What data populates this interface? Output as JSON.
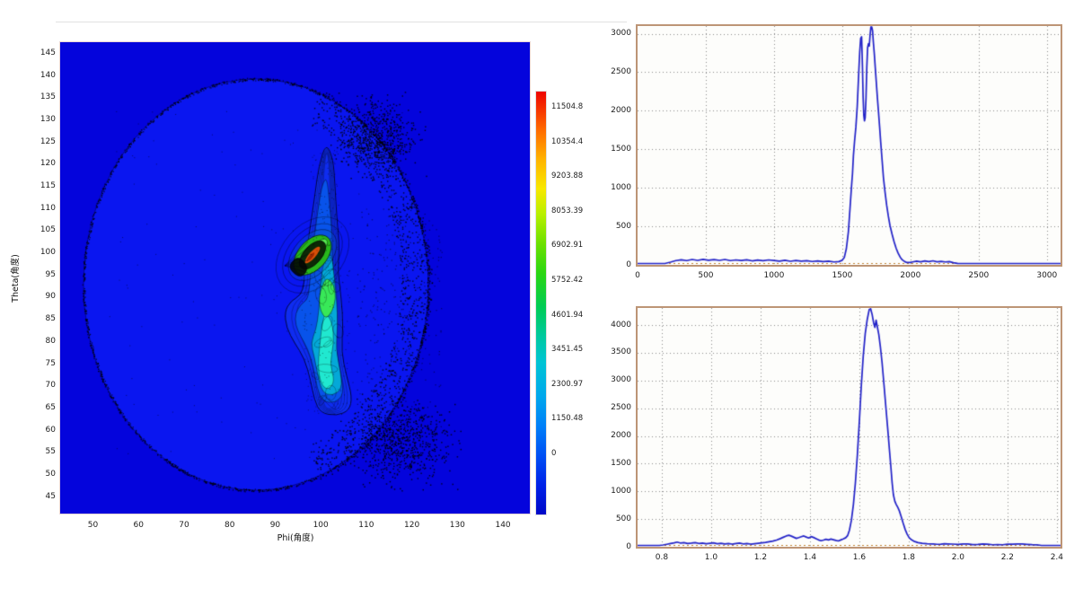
{
  "app": {
    "background": "#ffffff"
  },
  "chart_data": [
    {
      "id": "theta_phi_map",
      "type": "heatmap",
      "title": "",
      "xlabel": "Phi(角度)",
      "ylabel": "Theta(角度)",
      "x_tick_labels": [
        "50",
        "60",
        "70",
        "80",
        "90",
        "100",
        "110",
        "120",
        "130",
        "140"
      ],
      "x_tick_values": [
        50,
        60,
        70,
        80,
        90,
        100,
        110,
        120,
        130,
        140
      ],
      "y_tick_labels": [
        "145",
        "140",
        "135",
        "130",
        "125",
        "120",
        "115",
        "110",
        "105",
        "100",
        "95",
        "90",
        "85",
        "80",
        "75",
        "70",
        "65",
        "60",
        "55",
        "50",
        "45"
      ],
      "y_tick_values": [
        145,
        140,
        135,
        130,
        125,
        120,
        115,
        110,
        105,
        100,
        95,
        90,
        85,
        80,
        75,
        70,
        65,
        60,
        55,
        50,
        45
      ],
      "x_range": [
        42.8,
        145.9
      ],
      "y_range": [
        41.2,
        147.5
      ],
      "value_range": [
        0,
        11504.8
      ],
      "grid": false,
      "colorbar": {
        "orientation": "vertical",
        "tick_labels": [
          "11504.8",
          "10354.4",
          "9203.88",
          "8053.39",
          "6902.91",
          "5752.42",
          "4601.94",
          "3451.45",
          "2300.97",
          "1150.48",
          "0"
        ],
        "tick_values": [
          11504.8,
          10354.4,
          9203.88,
          8053.39,
          6902.91,
          5752.42,
          4601.94,
          3451.45,
          2300.97,
          1150.48,
          0
        ],
        "gradient_top_to_bottom": [
          "#ee0400",
          "#ff8000",
          "#ffd000",
          "#ffff00",
          "#80e000",
          "#20c820",
          "#00cc55",
          "#00c9a0",
          "#00c4d4",
          "#00a0f0",
          "#0050f4",
          "#0008c8"
        ]
      },
      "features": {
        "background_value_color": "#0404dc",
        "disk": {
          "center_phi": 85.8,
          "center_theta": 92.9,
          "radius_phi": 37.9,
          "radius_theta": 46.4,
          "fill": "#0a16f0"
        },
        "hot_spot": {
          "phi": 98.2,
          "theta": 99.5,
          "value": 11504.8,
          "core_color": "#d85008"
        },
        "plume": {
          "phi_span": [
            94,
            107
          ],
          "theta_span": [
            59,
            124
          ]
        },
        "speckle_color": "#000000"
      }
    },
    {
      "id": "spectrum_top",
      "type": "line",
      "title": "",
      "xlabel": "",
      "ylabel": "",
      "x_tick_labels": [
        "0",
        "500",
        "1000",
        "1500",
        "2000",
        "2500",
        "3000"
      ],
      "x_tick_values": [
        0,
        500,
        1000,
        1500,
        2000,
        2500,
        3000
      ],
      "y_tick_labels": [
        "0",
        "500",
        "1000",
        "1500",
        "2000",
        "2500",
        "3000"
      ],
      "y_tick_values": [
        0,
        500,
        1000,
        1500,
        2000,
        2500,
        3000
      ],
      "x_range": [
        0,
        3100
      ],
      "y_range": [
        0,
        3100
      ],
      "grid": "dotted",
      "line_color": "#2323c8",
      "border_color": "#bd9576",
      "zero_line_color": "#c08030",
      "noise_amp": 5,
      "points": [
        [
          0,
          6
        ],
        [
          80,
          6
        ],
        [
          150,
          8
        ],
        [
          200,
          15
        ],
        [
          240,
          35
        ],
        [
          280,
          55
        ],
        [
          320,
          65
        ],
        [
          360,
          55
        ],
        [
          400,
          70
        ],
        [
          440,
          58
        ],
        [
          480,
          72
        ],
        [
          520,
          60
        ],
        [
          560,
          68
        ],
        [
          600,
          58
        ],
        [
          640,
          70
        ],
        [
          680,
          55
        ],
        [
          720,
          64
        ],
        [
          760,
          56
        ],
        [
          800,
          66
        ],
        [
          840,
          52
        ],
        [
          880,
          62
        ],
        [
          920,
          54
        ],
        [
          960,
          64
        ],
        [
          1000,
          56
        ],
        [
          1040,
          48
        ],
        [
          1080,
          60
        ],
        [
          1120,
          47
        ],
        [
          1160,
          57
        ],
        [
          1200,
          49
        ],
        [
          1240,
          54
        ],
        [
          1280,
          44
        ],
        [
          1320,
          52
        ],
        [
          1360,
          42
        ],
        [
          1400,
          47
        ],
        [
          1440,
          38
        ],
        [
          1475,
          42
        ],
        [
          1500,
          60
        ],
        [
          1515,
          95
        ],
        [
          1530,
          210
        ],
        [
          1545,
          430
        ],
        [
          1558,
          760
        ],
        [
          1568,
          1020
        ],
        [
          1575,
          1180
        ],
        [
          1582,
          1420
        ],
        [
          1590,
          1600
        ],
        [
          1600,
          1790
        ],
        [
          1610,
          2060
        ],
        [
          1620,
          2460
        ],
        [
          1628,
          2760
        ],
        [
          1635,
          2940
        ],
        [
          1642,
          2960
        ],
        [
          1648,
          2580
        ],
        [
          1653,
          2180
        ],
        [
          1658,
          1940
        ],
        [
          1663,
          1870
        ],
        [
          1668,
          1910
        ],
        [
          1674,
          2160
        ],
        [
          1680,
          2560
        ],
        [
          1686,
          2820
        ],
        [
          1692,
          2870
        ],
        [
          1698,
          2840
        ],
        [
          1704,
          2980
        ],
        [
          1710,
          3100
        ],
        [
          1716,
          3100
        ],
        [
          1722,
          3040
        ],
        [
          1728,
          2890
        ],
        [
          1735,
          2740
        ],
        [
          1742,
          2560
        ],
        [
          1750,
          2360
        ],
        [
          1758,
          2160
        ],
        [
          1766,
          1980
        ],
        [
          1774,
          1790
        ],
        [
          1782,
          1590
        ],
        [
          1792,
          1360
        ],
        [
          1802,
          1130
        ],
        [
          1814,
          940
        ],
        [
          1826,
          770
        ],
        [
          1838,
          630
        ],
        [
          1850,
          510
        ],
        [
          1865,
          400
        ],
        [
          1880,
          300
        ],
        [
          1895,
          215
        ],
        [
          1910,
          150
        ],
        [
          1925,
          100
        ],
        [
          1940,
          65
        ],
        [
          1958,
          42
        ],
        [
          1975,
          30
        ],
        [
          1995,
          30
        ],
        [
          2015,
          38
        ],
        [
          2045,
          48
        ],
        [
          2075,
          40
        ],
        [
          2105,
          50
        ],
        [
          2135,
          42
        ],
        [
          2165,
          52
        ],
        [
          2195,
          40
        ],
        [
          2225,
          46
        ],
        [
          2255,
          38
        ],
        [
          2285,
          42
        ],
        [
          2315,
          28
        ],
        [
          2345,
          18
        ],
        [
          2375,
          12
        ],
        [
          2410,
          9
        ],
        [
          2460,
          8
        ],
        [
          2520,
          7
        ],
        [
          2600,
          6
        ],
        [
          2700,
          6
        ],
        [
          2800,
          5
        ],
        [
          2900,
          5
        ],
        [
          3000,
          5
        ],
        [
          3100,
          5
        ]
      ]
    },
    {
      "id": "spectrum_bottom",
      "type": "line",
      "title": "",
      "xlabel": "",
      "ylabel": "",
      "x_tick_labels": [
        "0.8",
        "1.0",
        "1.2",
        "1.4",
        "1.6",
        "1.8",
        "2.0",
        "2.2",
        "2.4"
      ],
      "x_tick_values": [
        0.8,
        1.0,
        1.2,
        1.4,
        1.6,
        1.8,
        2.0,
        2.2,
        2.4
      ],
      "y_tick_labels": [
        "0",
        "500",
        "1000",
        "1500",
        "2000",
        "2500",
        "3000",
        "3500",
        "4000"
      ],
      "y_tick_values": [
        0,
        500,
        1000,
        1500,
        2000,
        2500,
        3000,
        3500,
        4000
      ],
      "x_range": [
        0.702,
        2.415
      ],
      "y_range": [
        0,
        4310
      ],
      "grid": "dotted",
      "line_color": "#2323c8",
      "border_color": "#bd9576",
      "zero_line_color": "#c08030",
      "noise_amp": 8,
      "points": [
        [
          0.702,
          6
        ],
        [
          0.73,
          6
        ],
        [
          0.755,
          8
        ],
        [
          0.775,
          12
        ],
        [
          0.79,
          20
        ],
        [
          0.805,
          32
        ],
        [
          0.82,
          45
        ],
        [
          0.835,
          58
        ],
        [
          0.85,
          72
        ],
        [
          0.862,
          85
        ],
        [
          0.875,
          68
        ],
        [
          0.89,
          75
        ],
        [
          0.905,
          58
        ],
        [
          0.92,
          66
        ],
        [
          0.935,
          76
        ],
        [
          0.95,
          60
        ],
        [
          0.965,
          68
        ],
        [
          0.98,
          54
        ],
        [
          0.995,
          62
        ],
        [
          1.01,
          70
        ],
        [
          1.025,
          56
        ],
        [
          1.04,
          64
        ],
        [
          1.055,
          50
        ],
        [
          1.07,
          60
        ],
        [
          1.085,
          48
        ],
        [
          1.1,
          58
        ],
        [
          1.115,
          66
        ],
        [
          1.13,
          52
        ],
        [
          1.145,
          60
        ],
        [
          1.16,
          48
        ],
        [
          1.175,
          56
        ],
        [
          1.19,
          64
        ],
        [
          1.205,
          72
        ],
        [
          1.22,
          80
        ],
        [
          1.235,
          92
        ],
        [
          1.25,
          104
        ],
        [
          1.265,
          122
        ],
        [
          1.28,
          148
        ],
        [
          1.292,
          172
        ],
        [
          1.304,
          196
        ],
        [
          1.315,
          208
        ],
        [
          1.325,
          192
        ],
        [
          1.335,
          172
        ],
        [
          1.345,
          152
        ],
        [
          1.355,
          166
        ],
        [
          1.365,
          182
        ],
        [
          1.375,
          196
        ],
        [
          1.385,
          176
        ],
        [
          1.395,
          158
        ],
        [
          1.405,
          184
        ],
        [
          1.415,
          168
        ],
        [
          1.425,
          146
        ],
        [
          1.435,
          124
        ],
        [
          1.445,
          110
        ],
        [
          1.455,
          122
        ],
        [
          1.465,
          136
        ],
        [
          1.475,
          124
        ],
        [
          1.485,
          140
        ],
        [
          1.495,
          128
        ],
        [
          1.505,
          116
        ],
        [
          1.515,
          106
        ],
        [
          1.525,
          124
        ],
        [
          1.535,
          142
        ],
        [
          1.545,
          164
        ],
        [
          1.553,
          205
        ],
        [
          1.56,
          300
        ],
        [
          1.568,
          480
        ],
        [
          1.576,
          760
        ],
        [
          1.584,
          1150
        ],
        [
          1.592,
          1650
        ],
        [
          1.6,
          2250
        ],
        [
          1.608,
          2900
        ],
        [
          1.616,
          3450
        ],
        [
          1.624,
          3850
        ],
        [
          1.632,
          4100
        ],
        [
          1.64,
          4280
        ],
        [
          1.646,
          4310
        ],
        [
          1.652,
          4190
        ],
        [
          1.658,
          4040
        ],
        [
          1.663,
          3960
        ],
        [
          1.668,
          4090
        ],
        [
          1.673,
          3970
        ],
        [
          1.679,
          3830
        ],
        [
          1.685,
          3620
        ],
        [
          1.692,
          3330
        ],
        [
          1.7,
          2920
        ],
        [
          1.708,
          2500
        ],
        [
          1.716,
          2080
        ],
        [
          1.722,
          1750
        ],
        [
          1.728,
          1430
        ],
        [
          1.733,
          1150
        ],
        [
          1.738,
          940
        ],
        [
          1.744,
          820
        ],
        [
          1.75,
          760
        ],
        [
          1.756,
          710
        ],
        [
          1.762,
          650
        ],
        [
          1.77,
          540
        ],
        [
          1.778,
          420
        ],
        [
          1.786,
          310
        ],
        [
          1.794,
          225
        ],
        [
          1.802,
          165
        ],
        [
          1.812,
          125
        ],
        [
          1.824,
          95
        ],
        [
          1.838,
          75
        ],
        [
          1.855,
          62
        ],
        [
          1.875,
          55
        ],
        [
          1.9,
          50
        ],
        [
          1.93,
          46
        ],
        [
          1.96,
          52
        ],
        [
          2.0,
          44
        ],
        [
          2.04,
          50
        ],
        [
          2.08,
          42
        ],
        [
          2.12,
          48
        ],
        [
          2.16,
          40
        ],
        [
          2.2,
          46
        ],
        [
          2.24,
          52
        ],
        [
          2.28,
          44
        ],
        [
          2.32,
          36
        ],
        [
          2.355,
          22
        ],
        [
          2.385,
          12
        ],
        [
          2.415,
          8
        ]
      ]
    }
  ]
}
